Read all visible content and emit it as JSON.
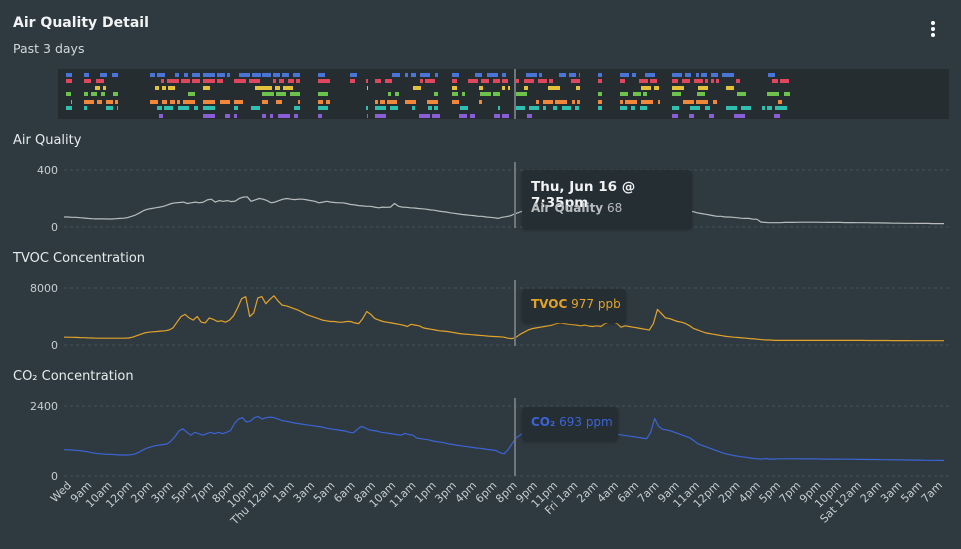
{
  "header": {
    "title": "Air Quality Detail",
    "subtitle": "Past 3 days",
    "menu_icon": "more-vertical-icon"
  },
  "event_strip": {
    "colors": [
      "#4a74d6",
      "#e0465c",
      "#e3c13a",
      "#6cc24a",
      "#f2873a",
      "#2fbfb0",
      "#8a5ed6"
    ]
  },
  "x_tick_labels": [
    "Wed",
    "9am",
    "10am",
    "12pm",
    "2pm",
    "3pm",
    "5pm",
    "7pm",
    "8pm",
    "10pm",
    "Thu 12am",
    "1am",
    "3am",
    "5am",
    "6am",
    "8am",
    "10am",
    "11am",
    "1pm",
    "3pm",
    "4pm",
    "6pm",
    "8pm",
    "9pm",
    "11pm",
    "Fri 1am",
    "2am",
    "4am",
    "6am",
    "7am",
    "9am",
    "11am",
    "12pm",
    "2pm",
    "4pm",
    "5pm",
    "7pm",
    "9pm",
    "10pm",
    "Sat 12am",
    "2am",
    "3am",
    "5am",
    "7am"
  ],
  "tooltip": {
    "time": "Thu, Jun 16 @ 7:35pm",
    "air_quality": {
      "name": "Air Quality",
      "value": "68"
    },
    "tvoc": {
      "name": "TVOC",
      "value": "977 ppb"
    },
    "co2": {
      "name": "CO₂",
      "value": "693 ppm"
    }
  },
  "chart_data": [
    {
      "type": "line",
      "title": "Air Quality",
      "ylim": [
        0,
        400
      ],
      "y_ticks": [
        "400",
        "0"
      ],
      "color": "#b8bcbf",
      "series": [
        {
          "name": "Air Quality",
          "values": [
            70,
            70,
            68,
            68,
            65,
            63,
            60,
            58,
            57,
            57,
            57,
            56,
            56,
            58,
            60,
            62,
            66,
            75,
            85,
            100,
            115,
            125,
            130,
            135,
            140,
            145,
            155,
            165,
            170,
            172,
            175,
            165,
            170,
            175,
            170,
            175,
            190,
            195,
            175,
            185,
            180,
            185,
            178,
            182,
            200,
            210,
            212,
            180,
            190,
            200,
            195,
            185,
            170,
            175,
            185,
            195,
            200,
            195,
            192,
            196,
            195,
            190,
            185,
            180,
            170,
            175,
            180,
            175,
            172,
            170,
            170,
            165,
            158,
            155,
            150,
            148,
            145,
            145,
            140,
            135,
            140,
            138,
            140,
            165,
            145,
            140,
            138,
            135,
            133,
            130,
            128,
            125,
            120,
            118,
            112,
            108,
            105,
            100,
            96,
            92,
            88,
            85,
            82,
            80,
            75,
            75,
            70,
            68,
            65,
            60,
            68,
            72,
            78,
            90,
            100,
            110,
            120,
            130,
            140,
            145,
            150,
            152,
            155,
            152,
            150,
            145,
            140,
            140,
            138,
            135,
            130,
            130,
            125,
            125,
            110,
            135,
            130,
            128,
            125,
            120,
            110,
            140,
            138,
            135,
            110,
            108,
            110,
            160,
            180,
            145,
            140,
            138,
            135,
            130,
            125,
            120,
            118,
            112,
            108,
            100,
            95,
            90,
            85,
            80,
            75,
            75,
            70,
            70,
            68,
            65,
            62,
            60,
            60,
            55,
            55,
            35,
            32,
            30,
            30,
            30,
            30,
            32,
            32,
            32,
            33,
            34,
            34,
            34,
            34,
            34,
            33,
            33,
            32,
            32,
            32,
            32,
            31,
            31,
            31,
            30,
            30,
            30,
            30,
            29,
            29,
            29,
            28,
            28,
            27,
            27,
            27,
            26,
            26,
            26,
            25,
            25,
            25,
            25,
            24,
            24,
            24,
            24
          ]
        }
      ]
    },
    {
      "type": "line",
      "title": "TVOC Concentration",
      "ylim": [
        0,
        8000
      ],
      "y_ticks": [
        "8000",
        "0"
      ],
      "color": "#e3a32a",
      "series": [
        {
          "name": "TVOC",
          "values": [
            1100,
            1100,
            1080,
            1060,
            1040,
            1020,
            1000,
            980,
            960,
            950,
            950,
            950,
            950,
            950,
            950,
            960,
            980,
            1100,
            1300,
            1500,
            1700,
            1800,
            1850,
            1900,
            1950,
            2000,
            2100,
            2400,
            3200,
            4000,
            4300,
            3800,
            3500,
            4000,
            3200,
            3100,
            3800,
            3600,
            3300,
            3400,
            3200,
            3500,
            4100,
            5200,
            6500,
            6800,
            4000,
            4500,
            6600,
            6800,
            5800,
            6400,
            6900,
            6200,
            5600,
            5500,
            5300,
            5100,
            4900,
            4600,
            4300,
            4100,
            3900,
            3700,
            3500,
            3400,
            3300,
            3300,
            3200,
            3200,
            3300,
            3300,
            3100,
            3000,
            3700,
            4700,
            4300,
            3700,
            3500,
            3300,
            3200,
            3100,
            3000,
            2900,
            2800,
            2600,
            2900,
            2800,
            2700,
            2400,
            2300,
            2200,
            2100,
            2000,
            1950,
            1900,
            1800,
            1700,
            1600,
            1550,
            1500,
            1450,
            1400,
            1350,
            1300,
            1250,
            1200,
            1180,
            1150,
            1100,
            950,
            900,
            1100,
            1500,
            1800,
            2100,
            2300,
            2400,
            2500,
            2600,
            2700,
            2800,
            3000,
            3100,
            3000,
            2900,
            2850,
            2800,
            2700,
            2800,
            2650,
            2600,
            2700,
            2600,
            3000,
            3200,
            3300,
            3000,
            2500,
            2700,
            2600,
            2500,
            2400,
            2300,
            2200,
            2100,
            3000,
            5000,
            4400,
            3800,
            3700,
            3500,
            3300,
            3200,
            3000,
            2700,
            2300,
            2100,
            1900,
            1700,
            1600,
            1500,
            1400,
            1300,
            1200,
            1150,
            1100,
            1050,
            1000,
            950,
            900,
            850,
            800,
            750,
            700,
            700,
            650,
            650,
            650,
            650,
            640,
            640,
            640,
            640,
            640,
            640,
            640,
            640,
            640,
            640,
            640,
            640,
            640,
            640,
            640,
            640,
            640,
            640,
            640,
            630,
            630,
            630,
            630,
            630,
            630,
            620,
            620,
            620,
            620,
            620,
            610,
            610,
            610,
            610,
            610,
            600,
            600,
            600,
            600
          ]
        }
      ]
    },
    {
      "type": "line",
      "title": "CO₂ Concentration",
      "ylim": [
        0,
        2400
      ],
      "y_ticks": [
        "2400",
        "0"
      ],
      "color": "#3c64d4",
      "series": [
        {
          "name": "CO₂",
          "values": [
            900,
            900,
            890,
            880,
            870,
            850,
            830,
            800,
            780,
            760,
            750,
            745,
            740,
            730,
            720,
            720,
            720,
            730,
            760,
            820,
            900,
            960,
            1000,
            1040,
            1060,
            1080,
            1100,
            1200,
            1350,
            1550,
            1620,
            1500,
            1400,
            1500,
            1450,
            1400,
            1450,
            1500,
            1450,
            1500,
            1450,
            1500,
            1560,
            1800,
            1950,
            2000,
            1850,
            1880,
            2000,
            2040,
            1950,
            2000,
            2020,
            2000,
            1950,
            1900,
            1880,
            1850,
            1820,
            1800,
            1780,
            1760,
            1740,
            1720,
            1700,
            1680,
            1650,
            1620,
            1600,
            1580,
            1560,
            1540,
            1500,
            1480,
            1600,
            1700,
            1650,
            1580,
            1560,
            1540,
            1500,
            1480,
            1460,
            1440,
            1420,
            1400,
            1460,
            1420,
            1400,
            1300,
            1280,
            1260,
            1240,
            1200,
            1180,
            1160,
            1140,
            1100,
            1080,
            1060,
            1040,
            1020,
            1000,
            980,
            960,
            950,
            930,
            910,
            890,
            870,
            800,
            760,
            900,
            1100,
            1300,
            1400,
            1480,
            1520,
            1540,
            1560,
            1580,
            1560,
            1540,
            1520,
            1500,
            1480,
            1460,
            1440,
            1420,
            1400,
            1450,
            1380,
            1350,
            1400,
            1350,
            1450,
            1500,
            1550,
            1500,
            1450,
            1420,
            1400,
            1380,
            1360,
            1340,
            1320,
            1300,
            1280,
            1500,
            1970,
            1700,
            1600,
            1580,
            1550,
            1500,
            1450,
            1400,
            1350,
            1300,
            1200,
            1100,
            1050,
            1000,
            950,
            900,
            850,
            800,
            760,
            730,
            700,
            680,
            660,
            640,
            620,
            600,
            590,
            580,
            600,
            580,
            580,
            590,
            590,
            590,
            590,
            590,
            590,
            585,
            585,
            585,
            585,
            585,
            580,
            580,
            580,
            580,
            580,
            575,
            575,
            575,
            575,
            570,
            570,
            570,
            565,
            565,
            565,
            560,
            560,
            560,
            555,
            555,
            555,
            550,
            550,
            550,
            545,
            545,
            540,
            540,
            540,
            535,
            535,
            530
          ]
        }
      ]
    }
  ]
}
